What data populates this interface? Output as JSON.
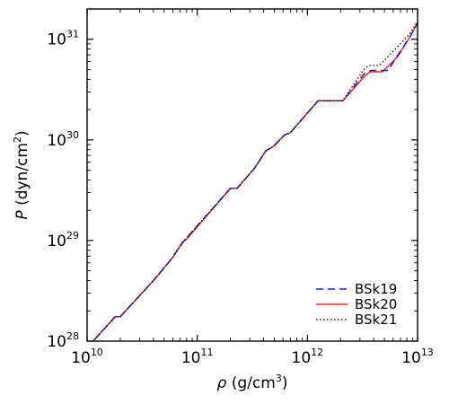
{
  "chart_data": {
    "type": "line",
    "xlabel": {
      "symbol": "ρ",
      "units": " (g/cm",
      "exp": "3",
      "close": ")"
    },
    "ylabel": {
      "symbol": "P",
      "units": " (dyn/cm",
      "exp": "2",
      "close": ")"
    },
    "x_scale": "log",
    "y_scale": "log",
    "xlim": [
      10000000000.0,
      10000000000000.0
    ],
    "ylim": [
      1e+28,
      2e+31
    ],
    "x_ticks": [
      {
        "value": 10000000000.0,
        "base": "10",
        "exp": "10"
      },
      {
        "value": 100000000000.0,
        "base": "10",
        "exp": "11"
      },
      {
        "value": 1000000000000.0,
        "base": "10",
        "exp": "12"
      },
      {
        "value": 10000000000000.0,
        "base": "10",
        "exp": "13"
      }
    ],
    "y_ticks": [
      {
        "value": 1e+28,
        "base": "10",
        "exp": "28"
      },
      {
        "value": 1e+29,
        "base": "10",
        "exp": "29"
      },
      {
        "value": 1e+30,
        "base": "10",
        "exp": "30"
      },
      {
        "value": 1e+31,
        "base": "10",
        "exp": "31"
      }
    ],
    "grid": false,
    "legend_position": "bottom-right",
    "series": [
      {
        "name": "BSk19",
        "color": "#1f1fdd",
        "style": "dashed",
        "x": [
          10000000000.0,
          18000000000.0,
          20000000000.0,
          40000000000.0,
          56000000000.0,
          75000000000.0,
          200000000000.0,
          230000000000.0,
          330000000000.0,
          420000000000.0,
          490000000000.0,
          620000000000.0,
          700000000000.0,
          1250000000000.0,
          2100000000000.0,
          3300000000000.0,
          3800000000000.0,
          5400000000000.0,
          6400000000000.0,
          8500000000000.0,
          10000000000000.0
        ],
        "y": [
          8.6e+27,
          1.75e+28,
          1.75e+28,
          4e+28,
          6.2e+28,
          9.8e+28,
          3.3e+29,
          3.3e+29,
          5.2e+29,
          7.8e+29,
          8.6e+29,
          1.12e+30,
          1.18e+30,
          2.45e+30,
          2.45e+30,
          4.6e+30,
          4.9e+30,
          4.9e+30,
          6.6e+30,
          1.05e+31,
          1.45e+31
        ]
      },
      {
        "name": "BSk20",
        "color": "#ff2020",
        "style": "solid",
        "x": [
          10000000000.0,
          18000000000.0,
          20000000000.0,
          40000000000.0,
          60000000000.0,
          73000000000.0,
          80000000000.0,
          200000000000.0,
          230000000000.0,
          330000000000.0,
          420000000000.0,
          490000000000.0,
          620000000000.0,
          700000000000.0,
          1250000000000.0,
          2100000000000.0,
          3300000000000.0,
          3700000000000.0,
          4800000000000.0,
          6600000000000.0,
          8500000000000.0,
          10000000000000.0
        ],
        "y": [
          8.6e+27,
          1.75e+28,
          1.75e+28,
          4e+28,
          6.8e+28,
          9.6e+28,
          1.03e+29,
          3.3e+29,
          3.3e+29,
          5.2e+29,
          7.8e+29,
          8.6e+29,
          1.12e+30,
          1.18e+30,
          2.45e+30,
          2.45e+30,
          4.3e+30,
          4.75e+30,
          4.75e+30,
          6.7e+30,
          1.05e+31,
          1.45e+31
        ]
      },
      {
        "name": "BSk21",
        "color": "#111111",
        "style": "dotted",
        "x": [
          10000000000.0,
          18000000000.0,
          20000000000.0,
          40000000000.0,
          60000000000.0,
          75000000000.0,
          200000000000.0,
          230000000000.0,
          330000000000.0,
          420000000000.0,
          490000000000.0,
          620000000000.0,
          700000000000.0,
          1250000000000.0,
          2100000000000.0,
          3200000000000.0,
          3600000000000.0,
          4500000000000.0,
          6000000000000.0,
          8500000000000.0,
          10000000000000.0
        ],
        "y": [
          8.6e+27,
          1.75e+28,
          1.75e+28,
          4e+28,
          6.8e+28,
          9.8e+28,
          3.3e+29,
          3.3e+29,
          5.2e+29,
          7.8e+29,
          8.6e+29,
          1.12e+30,
          1.18e+30,
          2.45e+30,
          2.45e+30,
          4.9e+30,
          5.5e+30,
          5.5e+30,
          7.6e+30,
          1.13e+31,
          1.5e+31
        ]
      }
    ]
  }
}
